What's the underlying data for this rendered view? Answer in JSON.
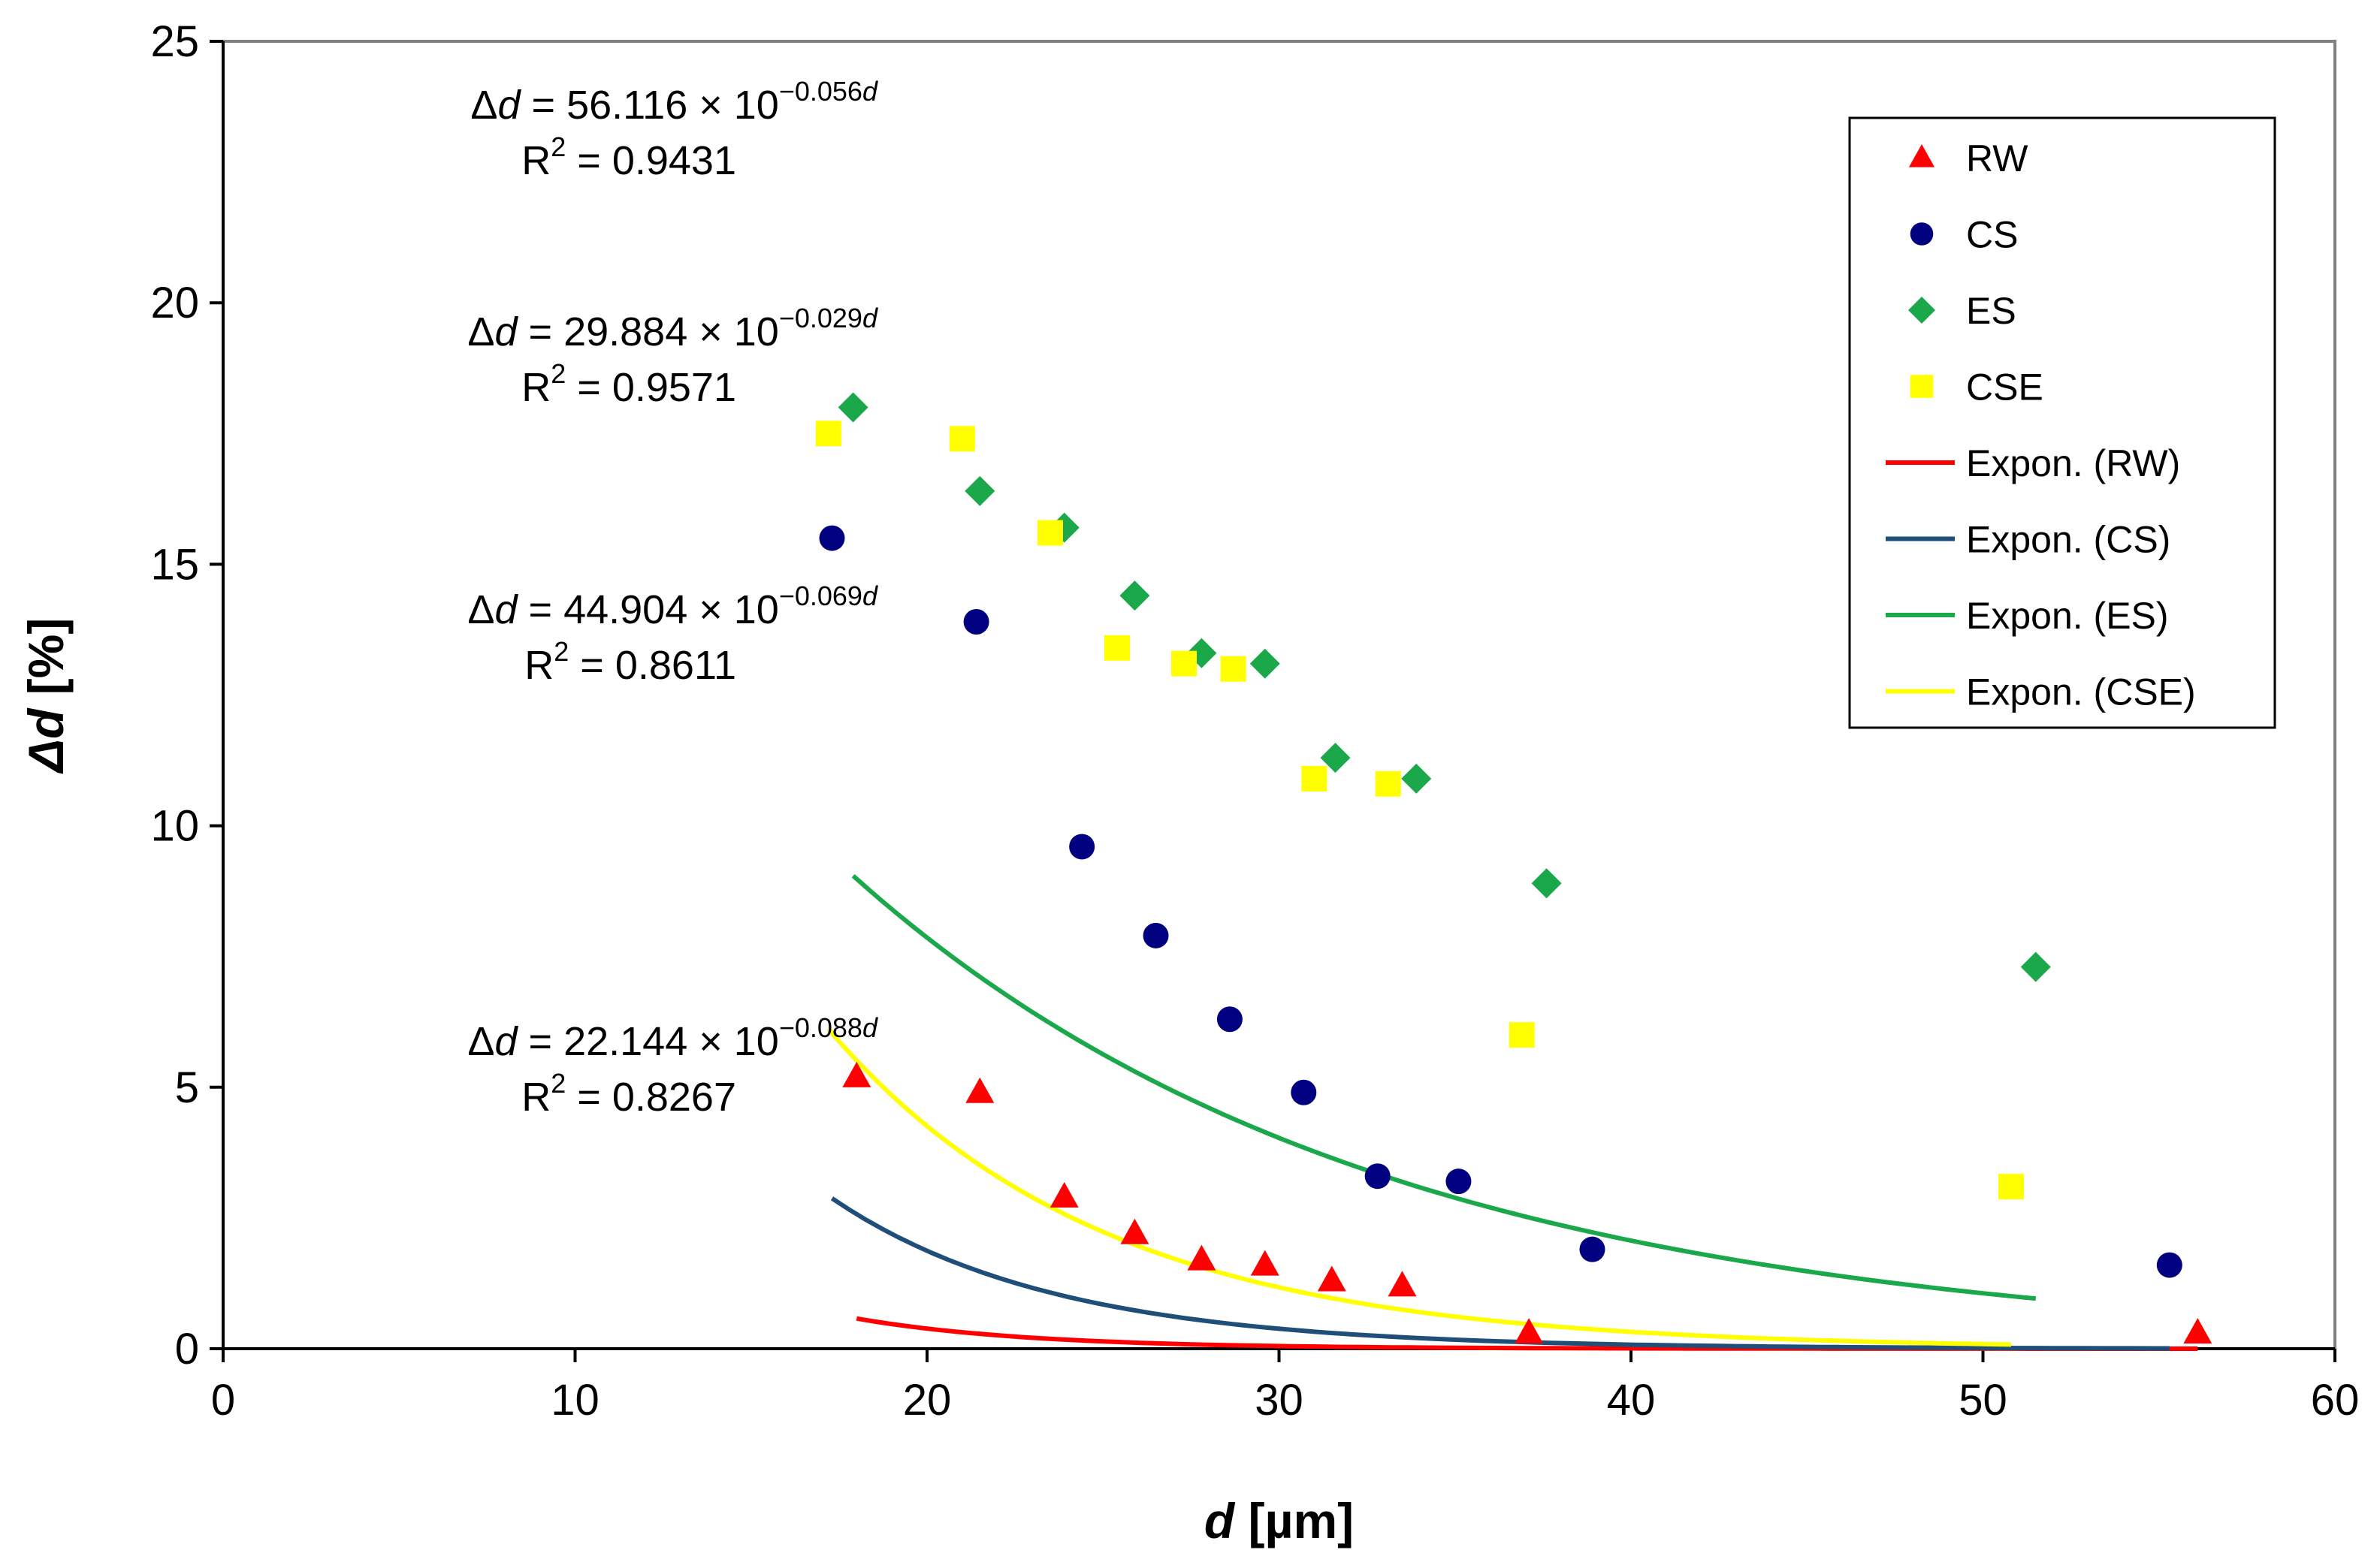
{
  "chart_data": {
    "type": "scatter",
    "xlabel_var": "d",
    "xlabel_unit": " [µm]",
    "ylabel_var": "Δd",
    "ylabel_unit": " [%]",
    "xlim": [
      0,
      60
    ],
    "ylim": [
      0,
      25
    ],
    "x_ticks": [
      "0",
      "10",
      "20",
      "30",
      "40",
      "50",
      "60"
    ],
    "y_ticks": [
      "0",
      "5",
      "10",
      "15",
      "20",
      "25"
    ],
    "grid": false,
    "legend_position": "top-right",
    "series": [
      {
        "name": "RW",
        "marker": "triangle",
        "color": "#ff0000",
        "x": [
          18.0,
          21.5,
          23.9,
          25.9,
          27.8,
          29.6,
          31.5,
          33.5,
          37.1,
          56.1
        ],
        "y": [
          5.2,
          4.9,
          2.9,
          2.2,
          1.7,
          1.6,
          1.3,
          1.2,
          0.3,
          0.3
        ]
      },
      {
        "name": "CS",
        "marker": "circle",
        "color": "#000080",
        "x": [
          17.3,
          21.4,
          24.4,
          26.5,
          28.6,
          30.7,
          32.8,
          35.1,
          38.9,
          55.3
        ],
        "y": [
          15.5,
          13.9,
          9.6,
          7.9,
          6.3,
          4.9,
          3.3,
          3.2,
          1.9,
          1.6
        ]
      },
      {
        "name": "ES",
        "marker": "diamond",
        "color": "#1aa84a",
        "x": [
          17.9,
          21.5,
          23.9,
          25.9,
          27.8,
          29.6,
          31.6,
          33.9,
          37.6,
          51.5
        ],
        "y": [
          18.0,
          16.4,
          15.7,
          14.4,
          13.3,
          13.1,
          11.3,
          10.9,
          8.9,
          7.3
        ]
      },
      {
        "name": "CSE",
        "marker": "square",
        "color": "#ffff00",
        "x": [
          17.2,
          21.0,
          23.5,
          25.4,
          27.3,
          28.7,
          31.0,
          33.1,
          36.9,
          50.8
        ],
        "y": [
          17.5,
          17.4,
          15.6,
          13.4,
          13.1,
          13.0,
          10.9,
          10.8,
          6.0,
          3.1
        ]
      }
    ],
    "fits": [
      {
        "name": "Expon. (RW)",
        "series": "RW",
        "color": "#ff0000",
        "a": 22.144,
        "b": 0.088,
        "x_range": [
          18.0,
          56.1
        ],
        "eq_prefix": " = 22.144 × 10",
        "eq_exp": "−0.088",
        "r2_value": " = 0.8267"
      },
      {
        "name": "Expon. (CS)",
        "series": "CS",
        "color": "#1f4e79",
        "a": 44.904,
        "b": 0.069,
        "x_range": [
          17.3,
          55.3
        ],
        "eq_prefix": " = 44.904 × 10",
        "eq_exp": "−0.069",
        "r2_value": " = 0.8611"
      },
      {
        "name": "Expon. (ES)",
        "series": "ES",
        "color": "#1aa84a",
        "a": 29.884,
        "b": 0.029,
        "x_range": [
          17.9,
          51.5
        ],
        "eq_prefix": " = 29.884 × 10",
        "eq_exp": "−0.029",
        "r2_value": " = 0.9571"
      },
      {
        "name": "Expon. (CSE)",
        "series": "CSE",
        "color": "#ffff00",
        "a": 56.116,
        "b": 0.056,
        "x_range": [
          17.2,
          50.8
        ],
        "eq_prefix": " = 56.116 × 10",
        "eq_exp": "−0.056",
        "r2_value": " = 0.9431"
      }
    ],
    "equation_labels": {
      "lhs_delta": "Δ",
      "lhs_var": "d",
      "exp_var": "d",
      "r2_letter": "R",
      "r2_sup": "2"
    }
  }
}
